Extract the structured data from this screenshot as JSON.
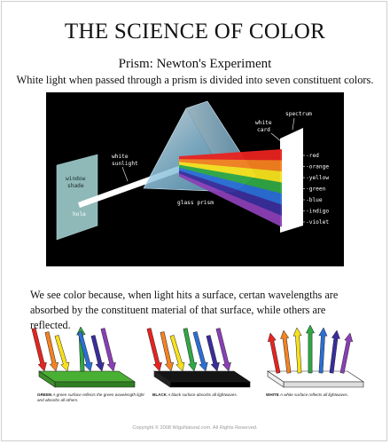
{
  "title": "THE SCIENCE OF COLOR",
  "subtitle": "Prism: Newton's Experiment",
  "intro": "White light when passed through a prism is divided into seven constituent colors.",
  "diagram": {
    "window_shade": [
      "window",
      "shade"
    ],
    "hole": "hole",
    "white_sunlight": [
      "white",
      "sunlight"
    ],
    "glass_prism": "glass prism",
    "white_card": [
      "white",
      "card"
    ],
    "spectrum": "spectrum",
    "colors": [
      "red",
      "orange",
      "yellow",
      "green",
      "blue",
      "indigo",
      "violet"
    ],
    "color_hex": [
      "#e8231f",
      "#f58220",
      "#f7e11b",
      "#2fa845",
      "#2a6fd6",
      "#3a2d9c",
      "#8b3fb5"
    ]
  },
  "paragraph": "We see color because, when light hits a surface, certan wavelengths are absorbed by the constituent material of that surface, while others are reflected.",
  "surfaces": [
    {
      "name": "GREEN",
      "text": "A green surface reflects the green wavelength light and absorbs all others.",
      "color": "#49b033"
    },
    {
      "name": "BLACK",
      "text": "A black surface absorbs all lightwaves.",
      "color": "#151515"
    },
    {
      "name": "WHITE",
      "text": "A white surface reflects all lightwaves.",
      "color": "#ffffff"
    }
  ],
  "copyright": "Copyright © 2008 WigsNatural.com. All Rights Reserved."
}
